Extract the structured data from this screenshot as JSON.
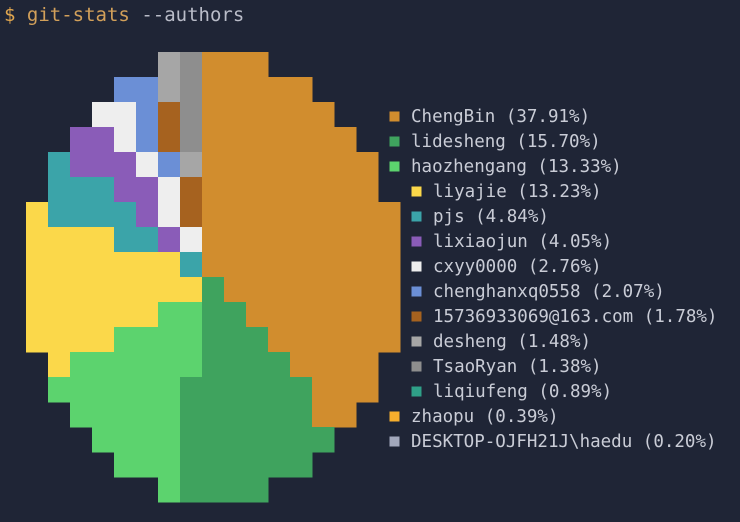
{
  "terminal": {
    "prompt": "$",
    "command": "git-stats",
    "args": "--authors"
  },
  "chart_data": {
    "type": "pie",
    "title": "",
    "slices": [
      {
        "label": "ChengBin (37.91%)",
        "name": "ChengBin",
        "value": 37.91,
        "color": "#d18d2e"
      },
      {
        "label": "lidesheng (15.70%)",
        "name": "lidesheng",
        "value": 15.7,
        "color": "#3fa35e"
      },
      {
        "label": "haozhengang (13.33%)",
        "name": "haozhengang",
        "value": 13.33,
        "color": "#5cd36e"
      },
      {
        "label": "liyajie (13.23%)",
        "name": "liyajie",
        "value": 13.23,
        "color": "#fbd84a"
      },
      {
        "label": "pjs (4.84%)",
        "name": "pjs",
        "value": 4.84,
        "color": "#3ba4a9"
      },
      {
        "label": "lixiaojun (4.05%)",
        "name": "lixiaojun",
        "value": 4.05,
        "color": "#8a5cb8"
      },
      {
        "label": "cxyy0000 (2.76%)",
        "name": "cxyy0000",
        "value": 2.76,
        "color": "#eeeeee"
      },
      {
        "label": "chenghanxq0558 (2.07%)",
        "name": "chenghanxq0558",
        "value": 2.07,
        "color": "#6b8fd6"
      },
      {
        "label": "15736933069@163.com (1.78%)",
        "name": "15736933069@163.com",
        "value": 1.78,
        "color": "#a6621f"
      },
      {
        "label": "desheng (1.48%)",
        "name": "desheng",
        "value": 1.48,
        "color": "#a6a6a6"
      },
      {
        "label": "TsaoRyan (1.38%)",
        "name": "TsaoRyan",
        "value": 1.38,
        "color": "#8e8e8e"
      },
      {
        "label": "liqiufeng (0.89%)",
        "name": "liqiufeng",
        "value": 0.89,
        "color": "#2fa088"
      },
      {
        "label": "zhaopu (0.39%)",
        "name": "zhaopu",
        "value": 0.39,
        "color": "#f6ae2d"
      },
      {
        "label": "DESKTOP-OJFH21J\\haedu (0.20%)",
        "name": "DESKTOP-OJFH21J\\haedu",
        "value": 0.2,
        "color": "#a2a8bc"
      }
    ],
    "legend_position": "right"
  }
}
